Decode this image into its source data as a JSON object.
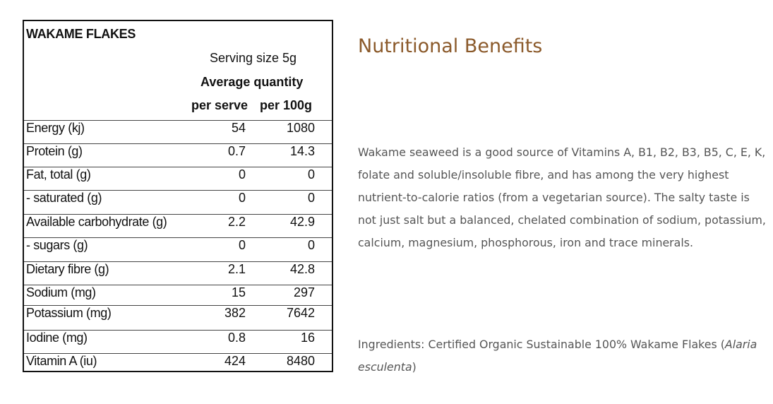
{
  "panel": {
    "title": "WAKAME FLAKES",
    "serving_size": "Serving size 5g",
    "average_quantity": "Average quantity",
    "col_per_serve": "per serve",
    "col_per_100g": "per 100g",
    "rows": [
      {
        "label": "Energy (kj)",
        "per_serve": "54",
        "per_100g": "1080"
      },
      {
        "label": "Protein (g)",
        "per_serve": "0.7",
        "per_100g": "14.3"
      },
      {
        "label": "Fat, total (g)",
        "per_serve": "0",
        "per_100g": "0"
      },
      {
        "label": "- saturated (g)",
        "per_serve": "0",
        "per_100g": "0"
      },
      {
        "label": "Available carbohydrate (g)",
        "per_serve": "2.2",
        "per_100g": "42.9"
      },
      {
        "label": "- sugars (g)",
        "per_serve": "0",
        "per_100g": "0"
      },
      {
        "label": "Dietary fibre (g)",
        "per_serve": "2.1",
        "per_100g": "42.8"
      },
      {
        "label": "Sodium (mg)",
        "per_serve": "15",
        "per_100g": "297"
      },
      {
        "label": "Potassium (mg)",
        "per_serve": "382",
        "per_100g": "7642"
      },
      {
        "label": "Iodine (mg)",
        "per_serve": "0.8",
        "per_100g": "16"
      },
      {
        "label": "Vitamin A (iu)",
        "per_serve": "424",
        "per_100g": "8480"
      }
    ]
  },
  "content": {
    "heading": "Nutritional Benefits",
    "description": "Wakame seaweed is a good source of Vitamins A, B1, B2, B3, B5, C, E, K, folate and soluble/insoluble fibre, and has among the very highest nutrient-to-calorie ratios (from a vegetarian source). The salty taste is not just salt but a balanced, chelated combination of sodium, potassium, calcium, magnesium, phosphorous, iron and trace minerals.",
    "ingredients_prefix": "Ingredients: Certified Organic Sustainable 100% Wakame Flakes (",
    "ingredients_latin": "Alaria esculenta",
    "ingredients_suffix": ")"
  }
}
